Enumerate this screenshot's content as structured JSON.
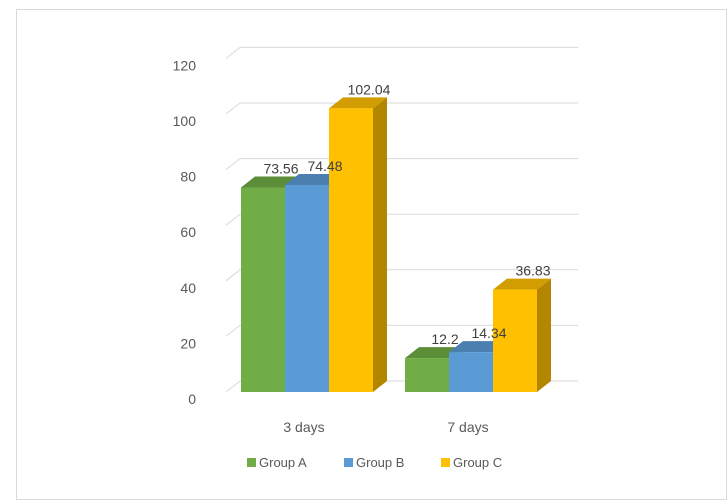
{
  "chart_data": {
    "type": "bar",
    "title": "",
    "xlabel": "",
    "ylabel": "",
    "categories": [
      "3 days",
      "7 days"
    ],
    "series": [
      {
        "name": "Group A",
        "values": [
          73.56,
          12.2
        ],
        "color": "#70ad47"
      },
      {
        "name": "Group B",
        "values": [
          74.48,
          14.34
        ],
        "color": "#5b9bd5"
      },
      {
        "name": "Group C",
        "values": [
          102.04,
          36.83
        ],
        "color": "#ffc000"
      }
    ],
    "ylim": [
      0,
      120
    ],
    "yticks": [
      0,
      20,
      40,
      60,
      80,
      100,
      120
    ],
    "grid": true,
    "legend_position": "bottom",
    "style": "3d-clustered-column"
  }
}
